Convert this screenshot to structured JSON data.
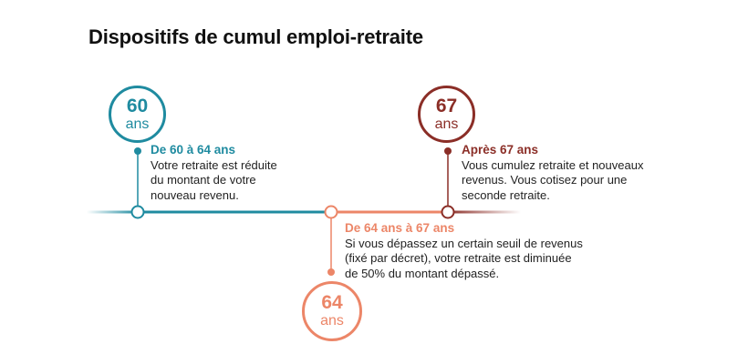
{
  "title": "Dispositifs de cumul emploi-retraite",
  "colors": {
    "teal": "#1f8ba0",
    "salmon": "#ec8668",
    "maroon": "#8b2e27"
  },
  "milestones": [
    {
      "age": "60",
      "unit": "ans",
      "heading": "De 60 à 64 ans",
      "lines": [
        "Votre retraite est réduite",
        "du montant de votre",
        "nouveau revenu."
      ]
    },
    {
      "age": "64",
      "unit": "ans",
      "heading": "De 64 ans à 67 ans",
      "lines": [
        "Si vous dépassez un certain seuil de revenus",
        "(fixé par décret), votre retraite est diminuée",
        "de 50% du montant dépassé."
      ]
    },
    {
      "age": "67",
      "unit": "ans",
      "heading": "Après 67 ans",
      "lines": [
        "Vous cumulez retraite et nouveaux",
        "revenus. Vous cotisez pour une",
        "seconde retraite."
      ]
    }
  ]
}
